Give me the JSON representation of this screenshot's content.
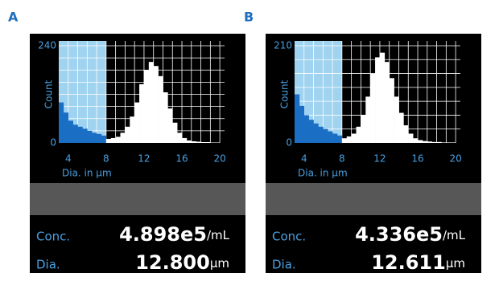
{
  "chart_data": [
    {
      "type": "histogram",
      "panel_label": "A",
      "ylabel": "Count",
      "xlabel": "Dia. in µm",
      "bins": [
        3,
        3.5,
        4,
        4.5,
        5,
        5.5,
        6,
        6.5,
        7,
        7.5,
        8,
        8.5,
        9,
        9.5,
        10,
        10.5,
        11,
        11.5,
        12,
        12.5,
        13,
        13.5,
        14,
        14.5,
        15,
        15.5,
        16,
        16.5,
        17,
        17.5,
        18,
        18.5,
        19,
        19.5,
        20
      ],
      "values": [
        100,
        75,
        55,
        45,
        40,
        35,
        30,
        25,
        22,
        18,
        10,
        12,
        15,
        25,
        40,
        65,
        100,
        145,
        180,
        200,
        190,
        165,
        125,
        85,
        50,
        25,
        12,
        6,
        4,
        3,
        2,
        2,
        1,
        1
      ],
      "xlim": [
        3,
        20.5
      ],
      "ylim": [
        0,
        240
      ],
      "xticks": [
        4,
        8,
        12,
        16,
        20
      ],
      "yticks": [
        0,
        240
      ],
      "grid_x": [
        4,
        5,
        6,
        7,
        8,
        9,
        10,
        11,
        12,
        13,
        14,
        15,
        16,
        17,
        18,
        19,
        20
      ],
      "grid_y": [
        30,
        60,
        90,
        120,
        150,
        180,
        210,
        240
      ],
      "highlight": [
        3,
        8
      ],
      "highlight_color": "#9fd3f0",
      "highlight_bar_color": "#1a6fc4",
      "color": "#ffffff",
      "conc_label": "Conc.",
      "conc_value": "4.898e5",
      "conc_unit": "/mL",
      "dia_label": "Dia.",
      "dia_value": "12.800",
      "dia_unit": "µm"
    },
    {
      "type": "histogram",
      "panel_label": "B",
      "ylabel": "Count",
      "xlabel": "Dia. in µm",
      "bins": [
        3,
        3.5,
        4,
        4.5,
        5,
        5.5,
        6,
        6.5,
        7,
        7.5,
        8,
        8.5,
        9,
        9.5,
        10,
        10.5,
        11,
        11.5,
        12,
        12.5,
        13,
        13.5,
        14,
        14.5,
        15,
        15.5,
        16,
        16.5,
        17,
        17.5,
        18,
        18.5,
        19,
        19.5,
        20
      ],
      "values": [
        105,
        80,
        60,
        50,
        42,
        35,
        30,
        25,
        20,
        16,
        10,
        14,
        20,
        35,
        60,
        100,
        150,
        185,
        195,
        175,
        140,
        100,
        65,
        38,
        20,
        10,
        6,
        4,
        3,
        2,
        2,
        1,
        1,
        1
      ],
      "xlim": [
        3,
        20.5
      ],
      "ylim": [
        0,
        210
      ],
      "xticks": [
        4,
        8,
        12,
        16,
        20
      ],
      "yticks": [
        0,
        210
      ],
      "grid_x": [
        4,
        5,
        6,
        7,
        8,
        9,
        10,
        11,
        12,
        13,
        14,
        15,
        16,
        17,
        18,
        19,
        20
      ],
      "grid_y": [
        30,
        60,
        90,
        120,
        150,
        180,
        210
      ],
      "highlight": [
        3,
        8
      ],
      "highlight_color": "#9fd3f0",
      "highlight_bar_color": "#1a6fc4",
      "color": "#ffffff",
      "conc_label": "Conc.",
      "conc_value": "4.336e5",
      "conc_unit": "/mL",
      "dia_label": "Dia.",
      "dia_value": "12.611",
      "dia_unit": "µm"
    }
  ]
}
